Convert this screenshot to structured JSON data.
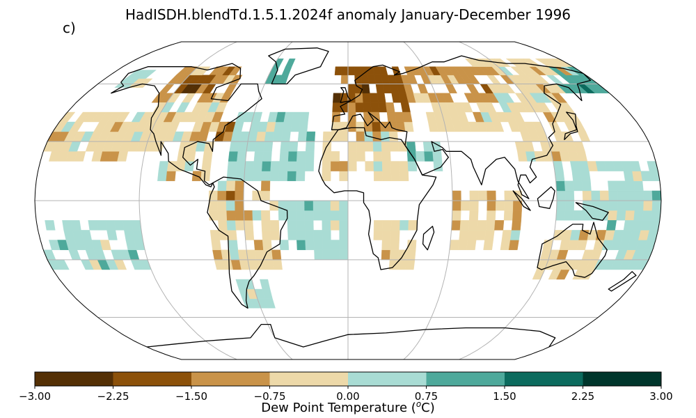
{
  "figure": {
    "title": "HadISDH.blendTd.1.5.1.2024f anomaly January-December 1996",
    "panel_label": "c)",
    "projection": "Robinson",
    "graticule": {
      "longitudes": [
        -120,
        -60,
        0,
        60,
        120
      ],
      "latitudes": [
        -60,
        -30,
        0,
        30,
        60
      ]
    }
  },
  "colorbar": {
    "label_prefix": "Dew Point Temperature (",
    "label_sup": "o",
    "label_suffix": "C)",
    "tick_labels": [
      "−3.00",
      "−2.25",
      "−1.50",
      "−0.75",
      "0.00",
      "0.75",
      "1.50",
      "2.25",
      "3.00"
    ],
    "bins": [
      {
        "range": "-3.00 to -2.25",
        "color": "#543005"
      },
      {
        "range": "-2.25 to -1.50",
        "color": "#8c510a"
      },
      {
        "range": "-1.50 to -0.75",
        "color": "#c99349"
      },
      {
        "range": "-0.75 to 0.00",
        "color": "#edd9a9"
      },
      {
        "range": "0.00 to 0.75",
        "color": "#a9dcd4"
      },
      {
        "range": "0.75 to 1.50",
        "color": "#4ea99b"
      },
      {
        "range": "1.50 to 2.25",
        "color": "#0c6b5e"
      },
      {
        "range": "2.25 to 3.00",
        "color": "#00362c"
      }
    ]
  },
  "anomaly_regions": [
    {
      "region": "North America (north)",
      "lon": [
        -130,
        -80
      ],
      "lat": [
        50,
        70
      ],
      "bin": 2
    },
    {
      "region": "Canada core",
      "lon": [
        -120,
        -95
      ],
      "lat": [
        55,
        65
      ],
      "bin": 1
    },
    {
      "region": "Canada dark spot",
      "lon": [
        -110,
        -105
      ],
      "lat": [
        55,
        60
      ],
      "bin": 0
    },
    {
      "region": "Alaska",
      "lon": [
        -165,
        -145
      ],
      "lat": [
        58,
        68
      ],
      "bin": 4
    },
    {
      "region": "Greenland coast",
      "lon": [
        -60,
        -45
      ],
      "lat": [
        60,
        75
      ],
      "bin": 5
    },
    {
      "region": "North America (south)",
      "lon": [
        -125,
        -80
      ],
      "lat": [
        25,
        50
      ],
      "bin": 3
    },
    {
      "region": "Eastern US",
      "lon": [
        -95,
        -70
      ],
      "lat": [
        30,
        45
      ],
      "bin": 2
    },
    {
      "region": "Mexico / Central America",
      "lon": [
        -110,
        -80
      ],
      "lat": [
        10,
        25
      ],
      "bin": 3
    },
    {
      "region": "North Atlantic",
      "lon": [
        -70,
        -20
      ],
      "lat": [
        10,
        45
      ],
      "bin": 4
    },
    {
      "region": "North Pacific",
      "lon": [
        -180,
        -125
      ],
      "lat": [
        20,
        45
      ],
      "bin": 3
    },
    {
      "region": "Pacific tropics",
      "lon": [
        -180,
        -120
      ],
      "lat": [
        -35,
        -10
      ],
      "bin": 4
    },
    {
      "region": "South America",
      "lon": [
        -80,
        -40
      ],
      "lat": [
        -35,
        10
      ],
      "bin": 3
    },
    {
      "region": "Amazon",
      "lon": [
        -75,
        -55
      ],
      "lat": [
        -10,
        5
      ],
      "bin": 2
    },
    {
      "region": "South Atlantic",
      "lon": [
        -40,
        0
      ],
      "lat": [
        -30,
        0
      ],
      "bin": 4
    },
    {
      "region": "Europe",
      "lon": [
        -10,
        40
      ],
      "lat": [
        45,
        70
      ],
      "bin": 1
    },
    {
      "region": "Europe (south)",
      "lon": [
        -10,
        40
      ],
      "lat": [
        35,
        45
      ],
      "bin": 2
    },
    {
      "region": "North Africa",
      "lon": [
        -15,
        35
      ],
      "lat": [
        10,
        35
      ],
      "bin": 3
    },
    {
      "region": "Arabia",
      "lon": [
        35,
        55
      ],
      "lat": [
        15,
        30
      ],
      "bin": 4
    },
    {
      "region": "Southern Africa",
      "lon": [
        15,
        40
      ],
      "lat": [
        -35,
        -10
      ],
      "bin": 3
    },
    {
      "region": "Russia",
      "lon": [
        40,
        100
      ],
      "lat": [
        50,
        70
      ],
      "bin": 2
    },
    {
      "region": "Central Asia",
      "lon": [
        50,
        100
      ],
      "lat": [
        35,
        50
      ],
      "bin": 3
    },
    {
      "region": "East Siberia",
      "lon": [
        100,
        180
      ],
      "lat": [
        55,
        75
      ],
      "bin": 3
    },
    {
      "region": "Bering / NE Asia coast",
      "lon": [
        150,
        180
      ],
      "lat": [
        55,
        68
      ],
      "bin": 5
    },
    {
      "region": "East Asia",
      "lon": [
        100,
        145
      ],
      "lat": [
        20,
        55
      ],
      "bin": 3
    },
    {
      "region": "Indian Ocean",
      "lon": [
        60,
        100
      ],
      "lat": [
        -25,
        5
      ],
      "bin": 3
    },
    {
      "region": "Western Pacific",
      "lon": [
        120,
        180
      ],
      "lat": [
        -10,
        20
      ],
      "bin": 4
    },
    {
      "region": "Australia",
      "lon": [
        115,
        155
      ],
      "lat": [
        -40,
        -15
      ],
      "bin": 3
    },
    {
      "region": "South Pacific",
      "lon": [
        150,
        180
      ],
      "lat": [
        -35,
        -10
      ],
      "bin": 4
    },
    {
      "region": "Southern Ocean",
      "lon": [
        -70,
        -50
      ],
      "lat": [
        -55,
        -40
      ],
      "bin": 4
    }
  ]
}
